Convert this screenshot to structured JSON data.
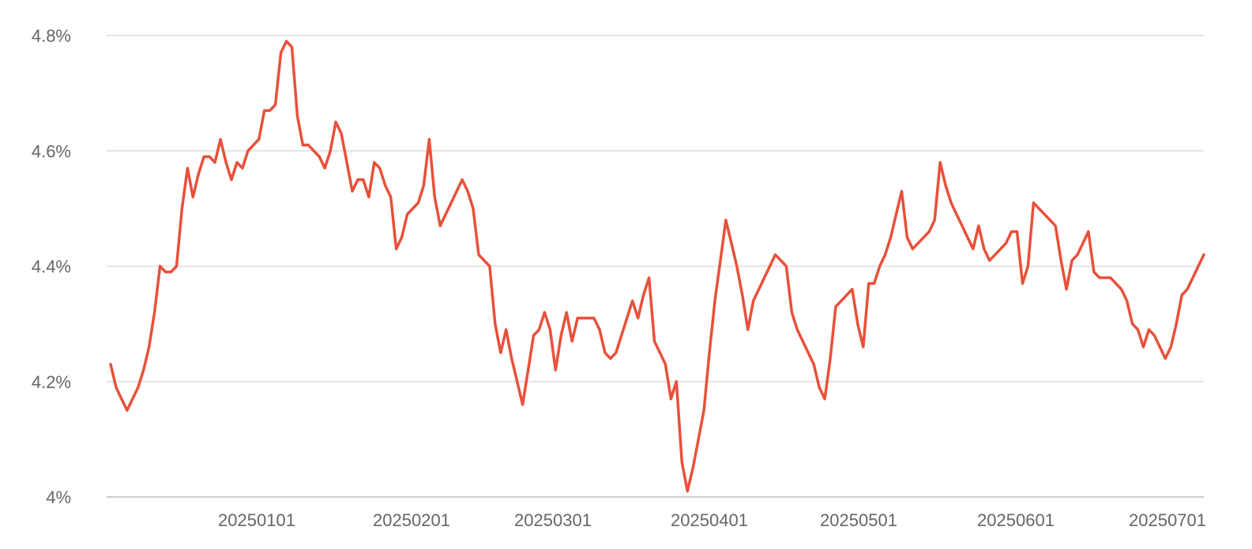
{
  "chart_data": {
    "type": "line",
    "title": "",
    "xlabel": "",
    "ylabel": "",
    "ylim": [
      4.0,
      4.8
    ],
    "y_ticks": [
      4.0,
      4.2,
      4.4,
      4.6,
      4.8
    ],
    "y_tick_labels": [
      "4%",
      "4.2%",
      "4.4%",
      "4.6%",
      "4.8%"
    ],
    "x_tick_labels": [
      "20250101",
      "20250201",
      "20250301",
      "20250401",
      "20250501",
      "20250601",
      "20250701"
    ],
    "grid": true,
    "legend": "none",
    "colors": {
      "line": "#e8503a",
      "grid": "#e4e4e4",
      "axis": "#cccccc",
      "text": "#666666"
    },
    "series": [
      {
        "values": [
          4.23,
          4.19,
          4.17,
          4.15,
          4.17,
          4.19,
          4.22,
          4.26,
          4.32,
          4.4,
          4.39,
          4.39,
          4.4,
          4.5,
          4.57,
          4.52,
          4.56,
          4.59,
          4.59,
          4.58,
          4.62,
          4.58,
          4.55,
          4.58,
          4.57,
          4.6,
          4.61,
          4.62,
          4.67,
          4.67,
          4.68,
          4.77,
          4.79,
          4.78,
          4.66,
          4.61,
          4.61,
          4.6,
          4.59,
          4.57,
          4.6,
          4.65,
          4.63,
          4.58,
          4.53,
          4.55,
          4.55,
          4.52,
          4.58,
          4.57,
          4.54,
          4.52,
          4.43,
          4.45,
          4.49,
          4.5,
          4.51,
          4.54,
          4.62,
          4.52,
          4.47,
          4.49,
          4.51,
          4.53,
          4.55,
          4.53,
          4.5,
          4.42,
          4.41,
          4.4,
          4.3,
          4.25,
          4.29,
          4.24,
          4.2,
          4.16,
          4.22,
          4.28,
          4.29,
          4.32,
          4.29,
          4.22,
          4.28,
          4.32,
          4.27,
          4.31,
          4.31,
          4.31,
          4.31,
          4.29,
          4.25,
          4.24,
          4.25,
          4.28,
          4.31,
          4.34,
          4.31,
          4.35,
          4.38,
          4.27,
          4.25,
          4.23,
          4.17,
          4.2,
          4.06,
          4.01,
          4.05,
          4.1,
          4.15,
          4.25,
          4.34,
          4.41,
          4.48,
          4.44,
          4.4,
          4.35,
          4.29,
          4.34,
          4.36,
          4.38,
          4.4,
          4.42,
          4.41,
          4.4,
          4.32,
          4.29,
          4.27,
          4.25,
          4.23,
          4.19,
          4.17,
          4.24,
          4.33,
          4.34,
          4.35,
          4.36,
          4.3,
          4.26,
          4.37,
          4.37,
          4.4,
          4.42,
          4.45,
          4.49,
          4.53,
          4.45,
          4.43,
          4.44,
          4.45,
          4.46,
          4.48,
          4.58,
          4.54,
          4.51,
          4.49,
          4.47,
          4.45,
          4.43,
          4.47,
          4.43,
          4.41,
          4.42,
          4.43,
          4.44,
          4.46,
          4.46,
          4.37,
          4.4,
          4.51,
          4.5,
          4.49,
          4.48,
          4.47,
          4.41,
          4.36,
          4.41,
          4.42,
          4.44,
          4.46,
          4.39,
          4.38,
          4.38,
          4.38,
          4.37,
          4.36,
          4.34,
          4.3,
          4.29,
          4.26,
          4.29,
          4.28,
          4.26,
          4.24,
          4.26,
          4.3,
          4.35,
          4.36,
          4.38,
          4.4,
          4.42
        ]
      }
    ]
  }
}
